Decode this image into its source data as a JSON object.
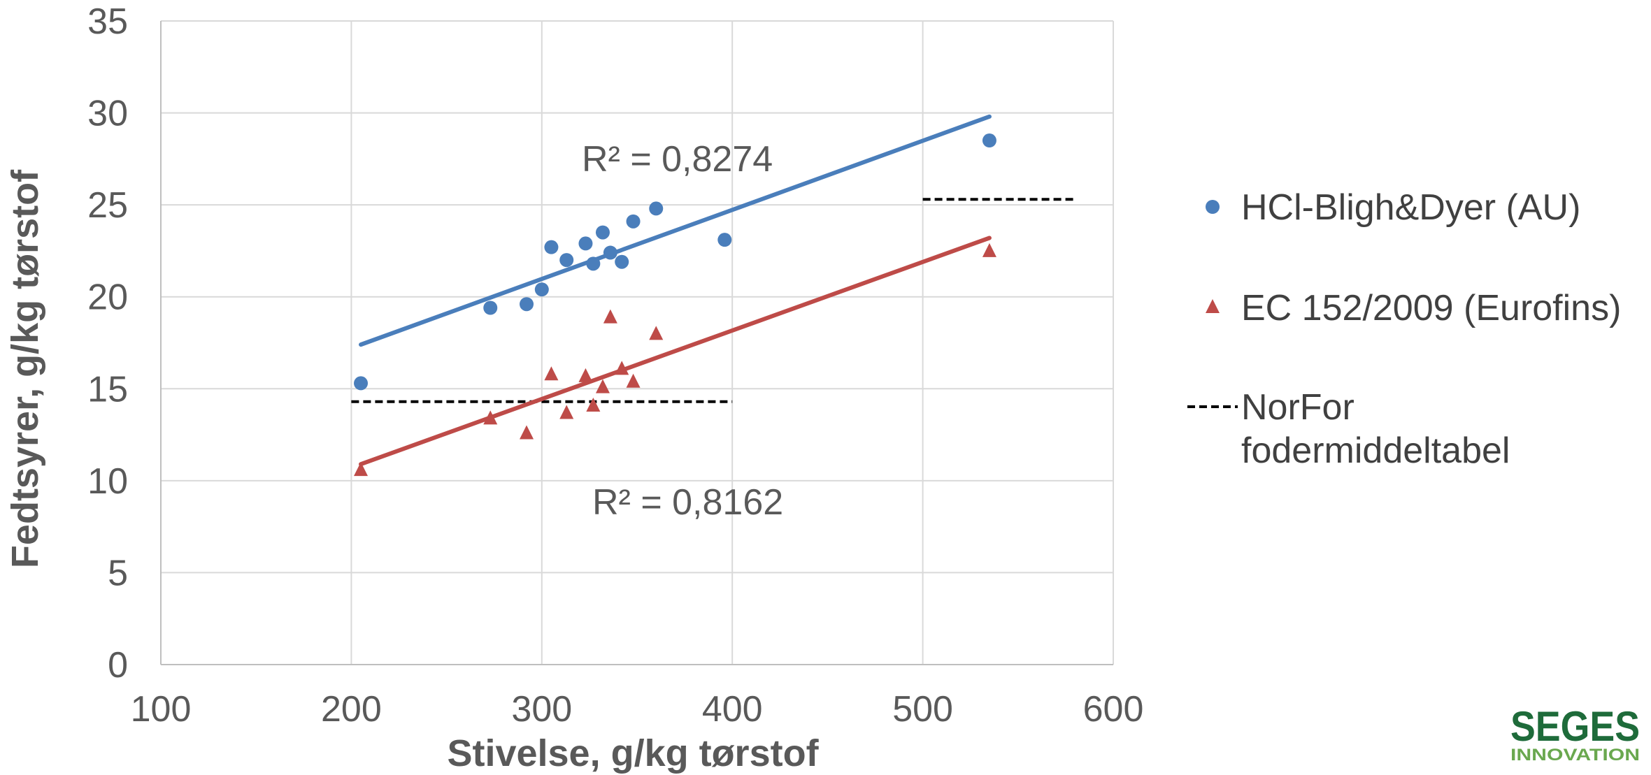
{
  "chart_data": {
    "type": "scatter",
    "xlabel": "Stivelse, g/kg tørstof",
    "ylabel": "Fedtsyrer, g/kg tørstof",
    "xlim": [
      100,
      600
    ],
    "ylim": [
      0,
      35
    ],
    "x_ticks": [
      "100",
      "200",
      "300",
      "400",
      "500",
      "600"
    ],
    "y_ticks": [
      "0",
      "5",
      "10",
      "15",
      "20",
      "25",
      "30",
      "35"
    ],
    "grid": true,
    "legend_position": "right",
    "series": [
      {
        "name": "HCl-Bligh&Dyer (AU)",
        "marker": "circle",
        "color": "#4a7ebb",
        "points": [
          [
            205,
            15.3
          ],
          [
            273,
            19.4
          ],
          [
            292,
            19.6
          ],
          [
            300,
            20.4
          ],
          [
            305,
            22.7
          ],
          [
            313,
            22.0
          ],
          [
            323,
            22.9
          ],
          [
            327,
            21.8
          ],
          [
            332,
            23.5
          ],
          [
            336,
            22.4
          ],
          [
            342,
            21.9
          ],
          [
            348,
            24.1
          ],
          [
            360,
            24.8
          ],
          [
            396,
            23.1
          ],
          [
            535,
            28.5
          ]
        ],
        "trendline": {
          "x": [
            205,
            535
          ],
          "y": [
            17.4,
            29.8
          ]
        },
        "r2_label": "R² = 0,8274"
      },
      {
        "name": "EC 152/2009 (Eurofins)",
        "marker": "triangle",
        "color": "#be4b48",
        "points": [
          [
            205,
            10.6
          ],
          [
            273,
            13.4
          ],
          [
            292,
            12.6
          ],
          [
            305,
            15.8
          ],
          [
            313,
            13.7
          ],
          [
            323,
            15.7
          ],
          [
            327,
            14.1
          ],
          [
            332,
            15.1
          ],
          [
            336,
            18.9
          ],
          [
            342,
            16.1
          ],
          [
            348,
            15.4
          ],
          [
            360,
            18.0
          ],
          [
            535,
            22.5
          ]
        ],
        "trendline": {
          "x": [
            205,
            535
          ],
          "y": [
            10.9,
            23.2
          ]
        },
        "r2_label": "R² = 0,8162"
      },
      {
        "name": "NorFor fodermiddeltabel",
        "name_lines": [
          "NorFor",
          "fodermiddeltabel"
        ],
        "marker": "dashed-line",
        "color": "#000000",
        "segments": [
          {
            "x": [
              200,
              400
            ],
            "y": [
              14.3,
              14.3
            ]
          },
          {
            "x": [
              500,
              580
            ],
            "y": [
              25.3,
              25.3
            ]
          }
        ]
      }
    ]
  },
  "logo": {
    "main": "SEGES",
    "sub": "INNOVATION"
  }
}
